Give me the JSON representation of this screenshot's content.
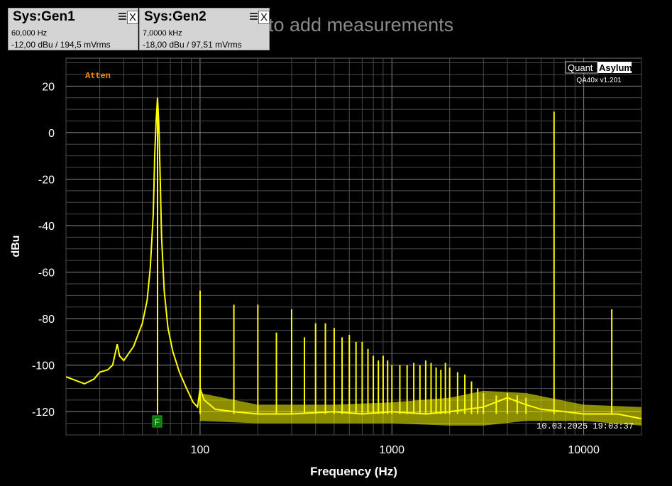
{
  "hint_text": "to add measurements",
  "generators": [
    {
      "title": "Sys:Gen1",
      "freq": "60,000 Hz",
      "level": "-12,00 dBu  / 194,5 mVrms",
      "menu_icon": "menu-icon",
      "close_label": "X"
    },
    {
      "title": "Sys:Gen2",
      "freq": "7,0000 kHz",
      "level": "-18,00 dBu  / 97,51 mVrms",
      "menu_icon": "menu-icon",
      "close_label": "X"
    }
  ],
  "logo": {
    "quant": "Quant",
    "asylum": "Asylum",
    "version": "QA40x v1.201"
  },
  "atten_label": "Atten",
  "f_marker": "F",
  "timestamp": "10.03.2025 19:03:37",
  "colors": {
    "trace": "#ffff00",
    "atten": "#ff8c00",
    "grid": "#6e6e6e",
    "f_marker_bg": "#0a7a0a"
  },
  "chart_data": {
    "type": "line",
    "xlabel": "Frequency (Hz)",
    "ylabel": "dBu",
    "x_scale": "log",
    "xlim": [
      20,
      20000
    ],
    "ylim": [
      -130,
      32
    ],
    "x_ticks": [
      100,
      1000,
      10000
    ],
    "x_tick_labels": [
      "100",
      "1000",
      "10000"
    ],
    "y_ticks": [
      20,
      0,
      -20,
      -40,
      -60,
      -80,
      -100,
      -120
    ],
    "y_tick_labels": [
      "20",
      "0",
      "-20",
      "-40",
      "-60",
      "-80",
      "-100",
      "-120"
    ],
    "grid": true,
    "series": [
      {
        "color": "#ffff00",
        "x": [
          20,
          25,
          28,
          30,
          33,
          35,
          37,
          38,
          40,
          45,
          50,
          53,
          55,
          57,
          58,
          59,
          60,
          61,
          62,
          63,
          65,
          68,
          72,
          78,
          85,
          92,
          97,
          100,
          105,
          120,
          150,
          200,
          300,
          500,
          700,
          1000,
          1500,
          2000,
          3000,
          4000,
          5000,
          6000,
          8000,
          10000,
          15000,
          20000
        ],
        "values": [
          -105,
          -108,
          -106,
          -103,
          -102,
          -100,
          -91,
          -96,
          -98,
          -92,
          -82,
          -72,
          -58,
          -35,
          -10,
          5,
          15,
          3,
          -20,
          -45,
          -68,
          -84,
          -94,
          -103,
          -110,
          -116,
          -118,
          -110,
          -115,
          -119,
          -120,
          -121,
          -121,
          -120,
          -121,
          -120,
          -121,
          -120,
          -118,
          -114,
          -117,
          -119,
          -120,
          -121,
          -121,
          -123
        ]
      }
    ],
    "peaks": [
      {
        "freq": 60,
        "level": 15
      },
      {
        "freq": 100,
        "level": -68
      },
      {
        "freq": 150,
        "level": -74
      },
      {
        "freq": 200,
        "level": -74
      },
      {
        "freq": 250,
        "level": -86
      },
      {
        "freq": 300,
        "level": -76
      },
      {
        "freq": 350,
        "level": -88
      },
      {
        "freq": 400,
        "level": -82
      },
      {
        "freq": 450,
        "level": -82
      },
      {
        "freq": 500,
        "level": -84
      },
      {
        "freq": 550,
        "level": -88
      },
      {
        "freq": 600,
        "level": -87
      },
      {
        "freq": 650,
        "level": -90
      },
      {
        "freq": 700,
        "level": -90
      },
      {
        "freq": 750,
        "level": -93
      },
      {
        "freq": 800,
        "level": -96
      },
      {
        "freq": 850,
        "level": -98
      },
      {
        "freq": 900,
        "level": -96
      },
      {
        "freq": 950,
        "level": -98
      },
      {
        "freq": 1000,
        "level": -100
      },
      {
        "freq": 1100,
        "level": -100
      },
      {
        "freq": 1200,
        "level": -100
      },
      {
        "freq": 1300,
        "level": -99
      },
      {
        "freq": 1400,
        "level": -100
      },
      {
        "freq": 1500,
        "level": -98
      },
      {
        "freq": 1600,
        "level": -99
      },
      {
        "freq": 1700,
        "level": -101
      },
      {
        "freq": 1800,
        "level": -102
      },
      {
        "freq": 1900,
        "level": -99
      },
      {
        "freq": 2000,
        "level": -101
      },
      {
        "freq": 2200,
        "level": -103
      },
      {
        "freq": 2400,
        "level": -104
      },
      {
        "freq": 2600,
        "level": -107
      },
      {
        "freq": 2800,
        "level": -110
      },
      {
        "freq": 3000,
        "level": -112
      },
      {
        "freq": 3500,
        "level": -113
      },
      {
        "freq": 4000,
        "level": -112
      },
      {
        "freq": 4500,
        "level": -113
      },
      {
        "freq": 5000,
        "level": -114
      },
      {
        "freq": 7000,
        "level": 9
      },
      {
        "freq": 14000,
        "level": -76
      }
    ]
  }
}
